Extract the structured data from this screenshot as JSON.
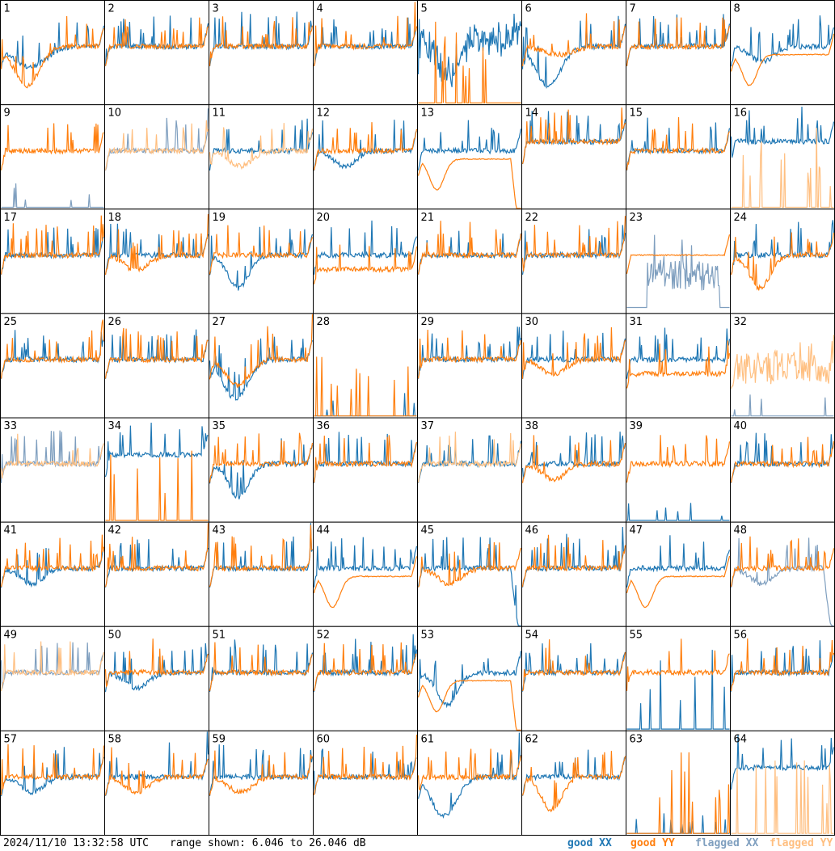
{
  "footer": {
    "timestamp": "2024/11/10 13:32:58 UTC",
    "range_text": "range shown: 6.046 to 26.046 dB"
  },
  "legend": [
    {
      "label": "good XX",
      "color": "#1f77b4"
    },
    {
      "label": "good YY",
      "color": "#ff7f0e"
    },
    {
      "label": "flagged XX",
      "color": "#7f9fbf"
    },
    {
      "label": "flagged YY",
      "color": "#ffbf80"
    }
  ],
  "chart_data": {
    "type": "line",
    "layout": "8x8 small multiples, one panel per input",
    "y_range_db": [
      6.046,
      26.046
    ],
    "panels": [
      {
        "id": "1",
        "xx": "good",
        "yy": "good",
        "xx_profile": "wide dip",
        "yy_profile": "deep bowl"
      },
      {
        "id": "2",
        "xx": "good",
        "yy": "good",
        "xx_profile": "flat",
        "yy_profile": "flat"
      },
      {
        "id": "3",
        "xx": "good",
        "yy": "good",
        "xx_profile": "flat",
        "yy_profile": "flat"
      },
      {
        "id": "4",
        "xx": "good",
        "yy": "good",
        "xx_profile": "flat",
        "yy_profile": "flat"
      },
      {
        "id": "5",
        "xx": "good",
        "yy": "good",
        "xx_profile": "deep dip, noisy",
        "yy_profile": "dead with spikes"
      },
      {
        "id": "6",
        "xx": "good",
        "yy": "good",
        "xx_profile": "deep bowl",
        "yy_profile": "mild dip"
      },
      {
        "id": "7",
        "xx": "good",
        "yy": "good",
        "xx_profile": "flat",
        "yy_profile": "slight dip"
      },
      {
        "id": "8",
        "xx": "good",
        "yy": "good",
        "xx_profile": "dip",
        "yy_profile": "smooth dip"
      },
      {
        "id": "9",
        "xx": "flagged",
        "yy": "good",
        "xx_profile": "dead",
        "yy_profile": "flat"
      },
      {
        "id": "10",
        "xx": "flagged",
        "yy": "flagged",
        "xx_profile": "flat",
        "yy_profile": "flat"
      },
      {
        "id": "11",
        "xx": "good",
        "yy": "flagged",
        "xx_profile": "flat",
        "yy_profile": "dip"
      },
      {
        "id": "12",
        "xx": "good",
        "yy": "good",
        "xx_profile": "dip",
        "yy_profile": "flat"
      },
      {
        "id": "13",
        "xx": "good",
        "yy": "good",
        "xx_profile": "flat",
        "yy_profile": "smooth bowl, edge drop"
      },
      {
        "id": "14",
        "xx": "good",
        "yy": "good",
        "xx_profile": "high",
        "yy_profile": "high"
      },
      {
        "id": "15",
        "xx": "good",
        "yy": "good",
        "xx_profile": "flat",
        "yy_profile": "flat"
      },
      {
        "id": "16",
        "xx": "good",
        "yy": "flagged",
        "xx_profile": "high",
        "yy_profile": "dead with spikes"
      },
      {
        "id": "17",
        "xx": "good",
        "yy": "good",
        "xx_profile": "flat",
        "yy_profile": "flat"
      },
      {
        "id": "18",
        "xx": "good",
        "yy": "good",
        "xx_profile": "flat",
        "yy_profile": "dip"
      },
      {
        "id": "19",
        "xx": "good",
        "yy": "good",
        "xx_profile": "deep dip",
        "yy_profile": "flat"
      },
      {
        "id": "20",
        "xx": "good",
        "yy": "good",
        "xx_profile": "flat",
        "yy_profile": "low"
      },
      {
        "id": "21",
        "xx": "good",
        "yy": "good",
        "xx_profile": "flat",
        "yy_profile": "flat"
      },
      {
        "id": "22",
        "xx": "good",
        "yy": "good",
        "xx_profile": "flat",
        "yy_profile": "flat"
      },
      {
        "id": "23",
        "xx": "flagged",
        "yy": "good",
        "xx_profile": "noisy burst",
        "yy_profile": "smooth plateau"
      },
      {
        "id": "24",
        "xx": "good",
        "yy": "good",
        "xx_profile": "flat",
        "yy_profile": "deep dip"
      },
      {
        "id": "25",
        "xx": "good",
        "yy": "good",
        "xx_profile": "flat",
        "yy_profile": "flat"
      },
      {
        "id": "26",
        "xx": "good",
        "yy": "good",
        "xx_profile": "flat",
        "yy_profile": "flat"
      },
      {
        "id": "27",
        "xx": "good",
        "yy": "good",
        "xx_profile": "deep bowl",
        "yy_profile": "bowl"
      },
      {
        "id": "28",
        "xx": "good",
        "yy": "good",
        "xx_profile": "dead",
        "yy_profile": "dead with spikes"
      },
      {
        "id": "29",
        "xx": "good",
        "yy": "good",
        "xx_profile": "flat",
        "yy_profile": "flat"
      },
      {
        "id": "30",
        "xx": "good",
        "yy": "good",
        "xx_profile": "flat",
        "yy_profile": "dip"
      },
      {
        "id": "31",
        "xx": "good",
        "yy": "good",
        "xx_profile": "flat",
        "yy_profile": "low"
      },
      {
        "id": "32",
        "xx": "flagged",
        "yy": "flagged",
        "xx_profile": "dead",
        "yy_profile": "noisy"
      },
      {
        "id": "33",
        "xx": "flagged",
        "yy": "flagged",
        "xx_profile": "flat",
        "yy_profile": "flat"
      },
      {
        "id": "34",
        "xx": "good",
        "yy": "good",
        "xx_profile": "high",
        "yy_profile": "dead with spikes"
      },
      {
        "id": "35",
        "xx": "good",
        "yy": "good",
        "xx_profile": "deep dip",
        "yy_profile": "flat"
      },
      {
        "id": "36",
        "xx": "good",
        "yy": "good",
        "xx_profile": "flat",
        "yy_profile": "flat"
      },
      {
        "id": "37",
        "xx": "good",
        "yy": "flagged",
        "xx_profile": "flat",
        "yy_profile": "flat"
      },
      {
        "id": "38",
        "xx": "good",
        "yy": "good",
        "xx_profile": "flat",
        "yy_profile": "dip"
      },
      {
        "id": "39",
        "xx": "good",
        "yy": "good",
        "xx_profile": "dead",
        "yy_profile": "flat"
      },
      {
        "id": "40",
        "xx": "good",
        "yy": "good",
        "xx_profile": "flat",
        "yy_profile": "flat"
      },
      {
        "id": "41",
        "xx": "good",
        "yy": "good",
        "xx_profile": "dip",
        "yy_profile": "flat"
      },
      {
        "id": "42",
        "xx": "good",
        "yy": "good",
        "xx_profile": "flat",
        "yy_profile": "flat"
      },
      {
        "id": "43",
        "xx": "good",
        "yy": "good",
        "xx_profile": "flat",
        "yy_profile": "flat"
      },
      {
        "id": "44",
        "xx": "good",
        "yy": "good",
        "xx_profile": "flat",
        "yy_profile": "smooth bowl"
      },
      {
        "id": "45",
        "xx": "good",
        "yy": "good",
        "xx_profile": "edge drop",
        "yy_profile": "dip"
      },
      {
        "id": "46",
        "xx": "good",
        "yy": "good",
        "xx_profile": "flat",
        "yy_profile": "flat"
      },
      {
        "id": "47",
        "xx": "good",
        "yy": "good",
        "xx_profile": "flat",
        "yy_profile": "smooth bowl"
      },
      {
        "id": "48",
        "xx": "flagged",
        "yy": "good",
        "xx_profile": "dip, edge drop",
        "yy_profile": "flat"
      },
      {
        "id": "49",
        "xx": "flagged",
        "yy": "flagged",
        "xx_profile": "flat",
        "yy_profile": "flat"
      },
      {
        "id": "50",
        "xx": "good",
        "yy": "good",
        "xx_profile": "dip",
        "yy_profile": "flat"
      },
      {
        "id": "51",
        "xx": "good",
        "yy": "good",
        "xx_profile": "flat",
        "yy_profile": "flat"
      },
      {
        "id": "52",
        "xx": "good",
        "yy": "good",
        "xx_profile": "flat",
        "yy_profile": "flat"
      },
      {
        "id": "53",
        "xx": "good",
        "yy": "good",
        "xx_profile": "deep dip",
        "yy_profile": "smooth bowl, edge drop"
      },
      {
        "id": "54",
        "xx": "good",
        "yy": "good",
        "xx_profile": "flat",
        "yy_profile": "flat"
      },
      {
        "id": "55",
        "xx": "good",
        "yy": "good",
        "xx_profile": "dead with spikes",
        "yy_profile": "flat"
      },
      {
        "id": "56",
        "xx": "good",
        "yy": "good",
        "xx_profile": "flat",
        "yy_profile": "flat"
      },
      {
        "id": "57",
        "xx": "good",
        "yy": "good",
        "xx_profile": "dip",
        "yy_profile": "flat"
      },
      {
        "id": "58",
        "xx": "good",
        "yy": "good",
        "xx_profile": "flat",
        "yy_profile": "dip"
      },
      {
        "id": "59",
        "xx": "good",
        "yy": "good",
        "xx_profile": "flat",
        "yy_profile": "dip"
      },
      {
        "id": "60",
        "xx": "good",
        "yy": "good",
        "xx_profile": "flat",
        "yy_profile": "flat"
      },
      {
        "id": "61",
        "xx": "good",
        "yy": "good",
        "xx_profile": "deep bowl",
        "yy_profile": "flat"
      },
      {
        "id": "62",
        "xx": "good",
        "yy": "good",
        "xx_profile": "flat",
        "yy_profile": "deep dip"
      },
      {
        "id": "63",
        "xx": "good",
        "yy": "good",
        "xx_profile": "dead",
        "yy_profile": "dead with spikes"
      },
      {
        "id": "64",
        "xx": "good",
        "yy": "flagged",
        "xx_profile": "high",
        "yy_profile": "dead with spikes"
      }
    ]
  }
}
